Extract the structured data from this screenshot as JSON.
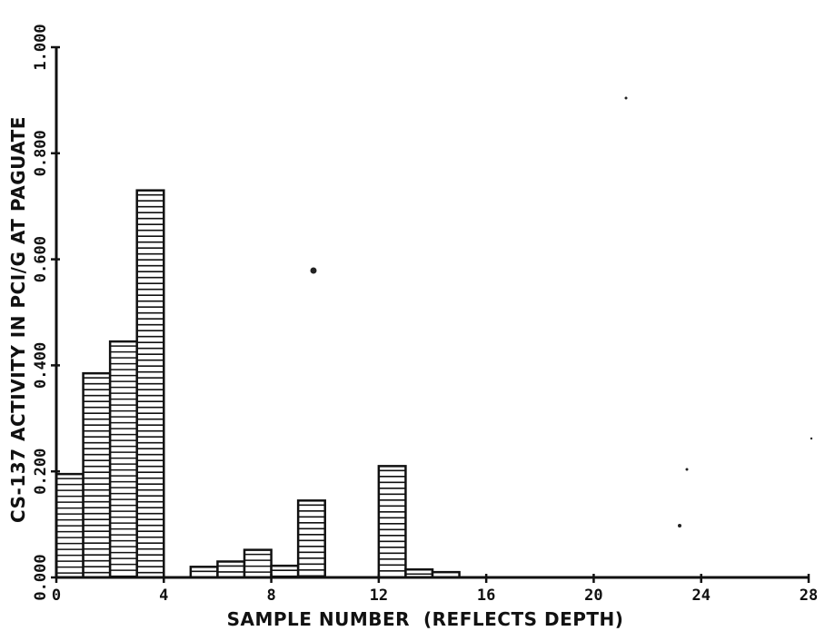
{
  "chart_data": {
    "type": "bar",
    "title": "",
    "xlabel": "SAMPLE NUMBER  (REFLECTS DEPTH)",
    "ylabel": "CS-137 ACTIVITY IN PCI/G AT PAGUATE",
    "xlim": [
      0,
      28
    ],
    "ylim": [
      0,
      1.0
    ],
    "x_ticks": [
      "0",
      "4",
      "8",
      "12",
      "16",
      "20",
      "24",
      "28"
    ],
    "y_ticks": [
      "0.000",
      "0.200",
      "0.400",
      "0.600",
      "0.800",
      "1.000"
    ],
    "bar_width": 1,
    "bar_fill": "horizontal-hatch",
    "grid": false,
    "legend": "none",
    "bars": [
      {
        "sample": 1,
        "value": 0.195
      },
      {
        "sample": 2,
        "value": 0.385
      },
      {
        "sample": 3,
        "value": 0.445
      },
      {
        "sample": 4,
        "value": 0.73
      },
      {
        "sample": 5,
        "value": 0.0
      },
      {
        "sample": 6,
        "value": 0.02
      },
      {
        "sample": 7,
        "value": 0.03
      },
      {
        "sample": 8,
        "value": 0.052
      },
      {
        "sample": 9,
        "value": 0.022
      },
      {
        "sample": 10,
        "value": 0.145
      },
      {
        "sample": 11,
        "value": 0.0
      },
      {
        "sample": 12,
        "value": 0.0
      },
      {
        "sample": 13,
        "value": 0.21
      },
      {
        "sample": 14,
        "value": 0.015
      },
      {
        "sample": 15,
        "value": 0.01
      }
    ]
  }
}
